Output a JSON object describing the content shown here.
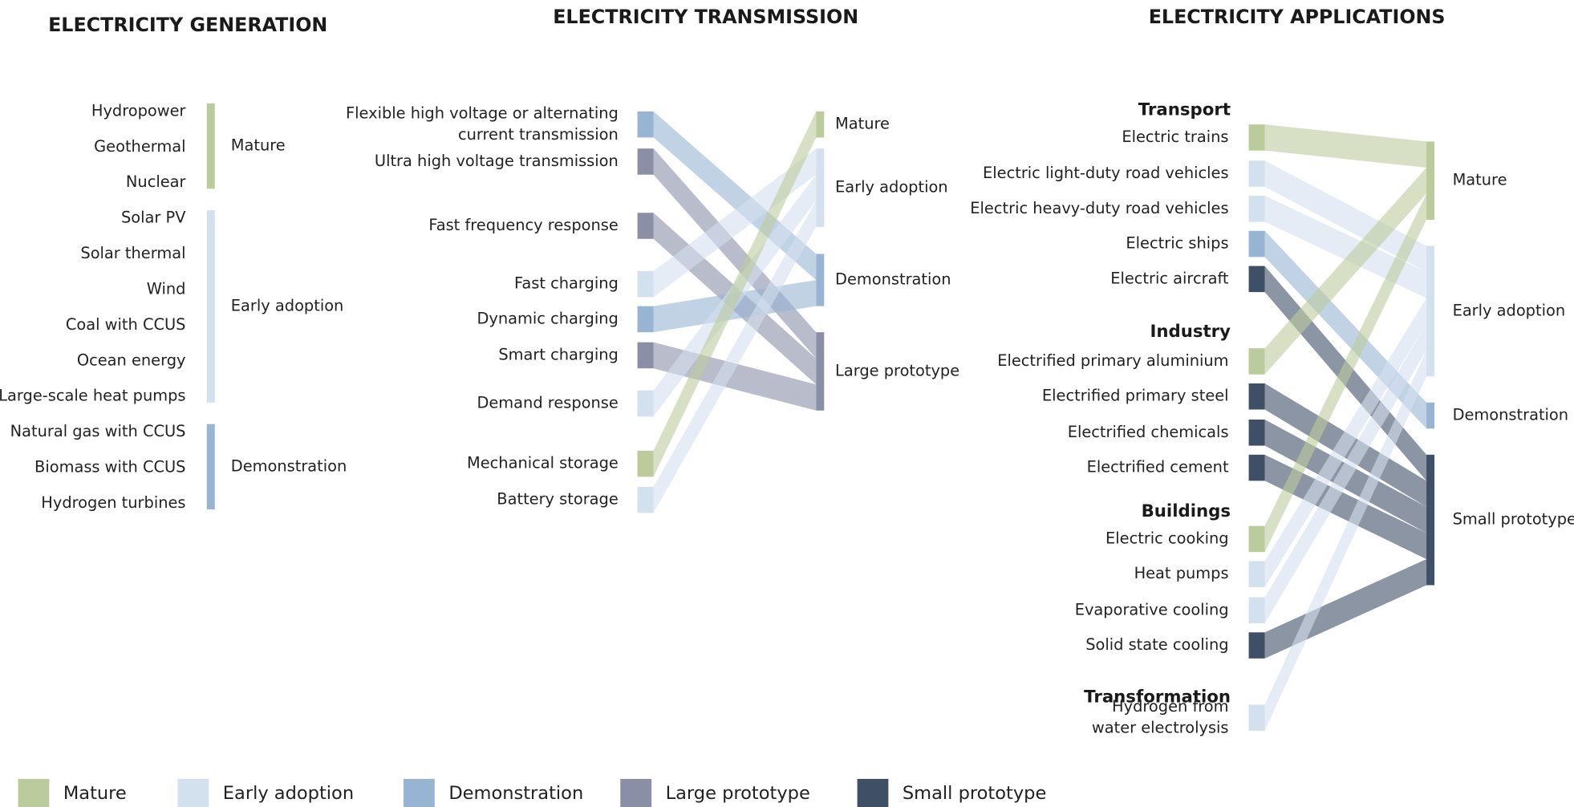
{
  "legend": [
    {
      "label": "Mature",
      "color": "#bccb9c"
    },
    {
      "label": "Early adoption",
      "color": "#d3e0ee"
    },
    {
      "label": "Demonstration",
      "color": "#97b4d3"
    },
    {
      "label": "Large prototype",
      "color": "#8a8fa6"
    },
    {
      "label": "Small prototype",
      "color": "#3f4f66"
    }
  ],
  "generation": {
    "title": "ELECTRICITY GENERATION",
    "items": [
      {
        "label": "Hydropower",
        "stage": "Mature"
      },
      {
        "label": "Geothermal",
        "stage": "Mature"
      },
      {
        "label": "Nuclear",
        "stage": "Mature"
      },
      {
        "label": "Solar PV",
        "stage": "Early adoption"
      },
      {
        "label": "Solar thermal",
        "stage": "Early adoption"
      },
      {
        "label": "Wind",
        "stage": "Early adoption"
      },
      {
        "label": "Coal with CCUS",
        "stage": "Early adoption"
      },
      {
        "label": "Ocean energy",
        "stage": "Early adoption"
      },
      {
        "label": "Large-scale heat pumps",
        "stage": "Early adoption"
      },
      {
        "label": "Natural gas with CCUS",
        "stage": "Demonstration"
      },
      {
        "label": "Biomass with CCUS",
        "stage": "Demonstration"
      },
      {
        "label": "Hydrogen turbines",
        "stage": "Demonstration"
      }
    ],
    "stages": [
      "Mature",
      "Early adoption",
      "Demonstration"
    ]
  },
  "transmission": {
    "title": "ELECTRICITY TRANSMISSION",
    "items": [
      {
        "label": [
          "Flexible high voltage or alternating",
          "current transmission"
        ],
        "stage": "Demonstration"
      },
      {
        "label": "Ultra high voltage transmission",
        "stage": "Large prototype"
      },
      {
        "label": "Fast frequency response",
        "stage": "Large prototype"
      },
      {
        "label": "Fast charging",
        "stage": "Early adoption"
      },
      {
        "label": "Dynamic charging",
        "stage": "Demonstration"
      },
      {
        "label": "Smart charging",
        "stage": "Large prototype"
      },
      {
        "label": "Demand response",
        "stage": "Early adoption"
      },
      {
        "label": "Mechanical storage",
        "stage": "Mature"
      },
      {
        "label": "Battery storage",
        "stage": "Early adoption"
      }
    ],
    "stages": [
      "Mature",
      "Early adoption",
      "Demonstration",
      "Large prototype"
    ]
  },
  "applications": {
    "title": "ELECTRICITY APPLICATIONS",
    "groups": [
      {
        "name": "Transport",
        "items": [
          {
            "label": "Electric trains",
            "stage": "Mature"
          },
          {
            "label": "Electric light-duty road vehicles",
            "stage": "Early adoption"
          },
          {
            "label": "Electric heavy-duty road vehicles",
            "stage": "Early adoption"
          },
          {
            "label": "Electric ships",
            "stage": "Demonstration"
          },
          {
            "label": "Electric aircraft",
            "stage": "Small prototype"
          }
        ]
      },
      {
        "name": "Industry",
        "items": [
          {
            "label": "Electrified primary aluminium",
            "stage": "Mature"
          },
          {
            "label": "Electrified primary steel",
            "stage": "Small prototype"
          },
          {
            "label": "Electrified chemicals",
            "stage": "Small prototype"
          },
          {
            "label": "Electrified cement",
            "stage": "Small prototype"
          }
        ]
      },
      {
        "name": "Buildings",
        "items": [
          {
            "label": "Electric cooking",
            "stage": "Mature"
          },
          {
            "label": "Heat pumps",
            "stage": "Early adoption"
          },
          {
            "label": "Evaporative cooling",
            "stage": "Early adoption"
          },
          {
            "label": "Solid state cooling",
            "stage": "Small prototype"
          }
        ]
      },
      {
        "name": "Transformation",
        "items": [
          {
            "label": [
              "Hydrogen from",
              "water electrolysis"
            ],
            "stage": "Early adoption"
          }
        ]
      }
    ],
    "stages": [
      "Mature",
      "Early adoption",
      "Demonstration",
      "Small prototype"
    ]
  }
}
